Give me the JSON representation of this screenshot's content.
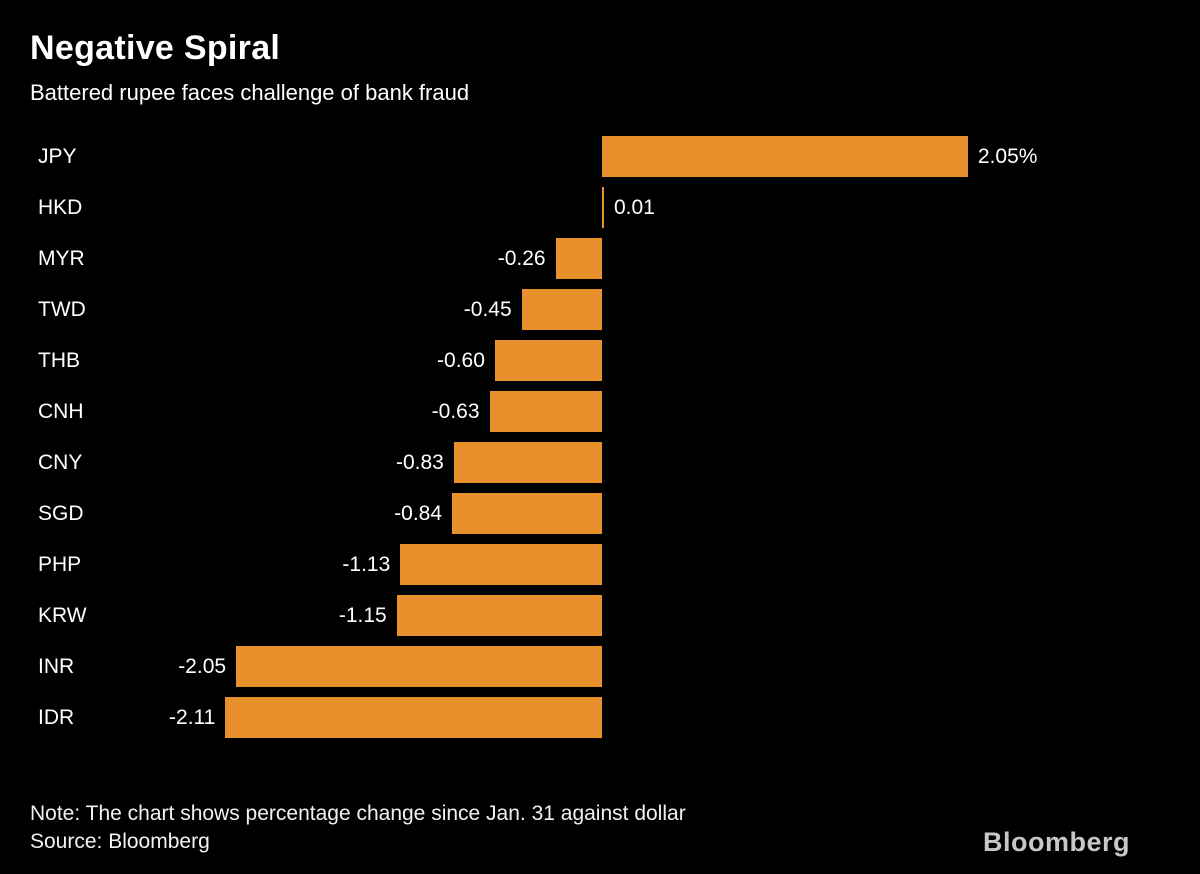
{
  "colors": {
    "background": "#000000",
    "bar_accent": "#E8912C",
    "text": "#FFFFFF",
    "logo_gray": "#C7C7C7"
  },
  "branding": {
    "logo": "Bloomberg"
  },
  "chart_data": {
    "type": "bar",
    "orientation": "horizontal",
    "title": "Negative Spiral",
    "subtitle": "Battered rupee faces challenge of bank fraud",
    "note": "Note: The chart shows percentage change since Jan. 31 against dollar",
    "source": "Source: Bloomberg",
    "xlabel": "",
    "ylabel": "",
    "xlim": [
      -2.2,
      2.2
    ],
    "grid": false,
    "legend": false,
    "unit": "percent change vs dollar since Jan. 31",
    "categories": [
      "JPY",
      "HKD",
      "MYR",
      "TWD",
      "THB",
      "CNH",
      "CNY",
      "SGD",
      "PHP",
      "KRW",
      "INR",
      "IDR"
    ],
    "values": [
      2.05,
      0.01,
      -0.26,
      -0.45,
      -0.6,
      -0.63,
      -0.83,
      -0.84,
      -1.13,
      -1.15,
      -2.05,
      -2.11
    ],
    "value_labels": [
      "2.05%",
      "0.01",
      "-0.26",
      "-0.45",
      "-0.60",
      "-0.63",
      "-0.83",
      "-0.84",
      "-1.13",
      "-1.15",
      "-2.05",
      "-2.11"
    ]
  }
}
